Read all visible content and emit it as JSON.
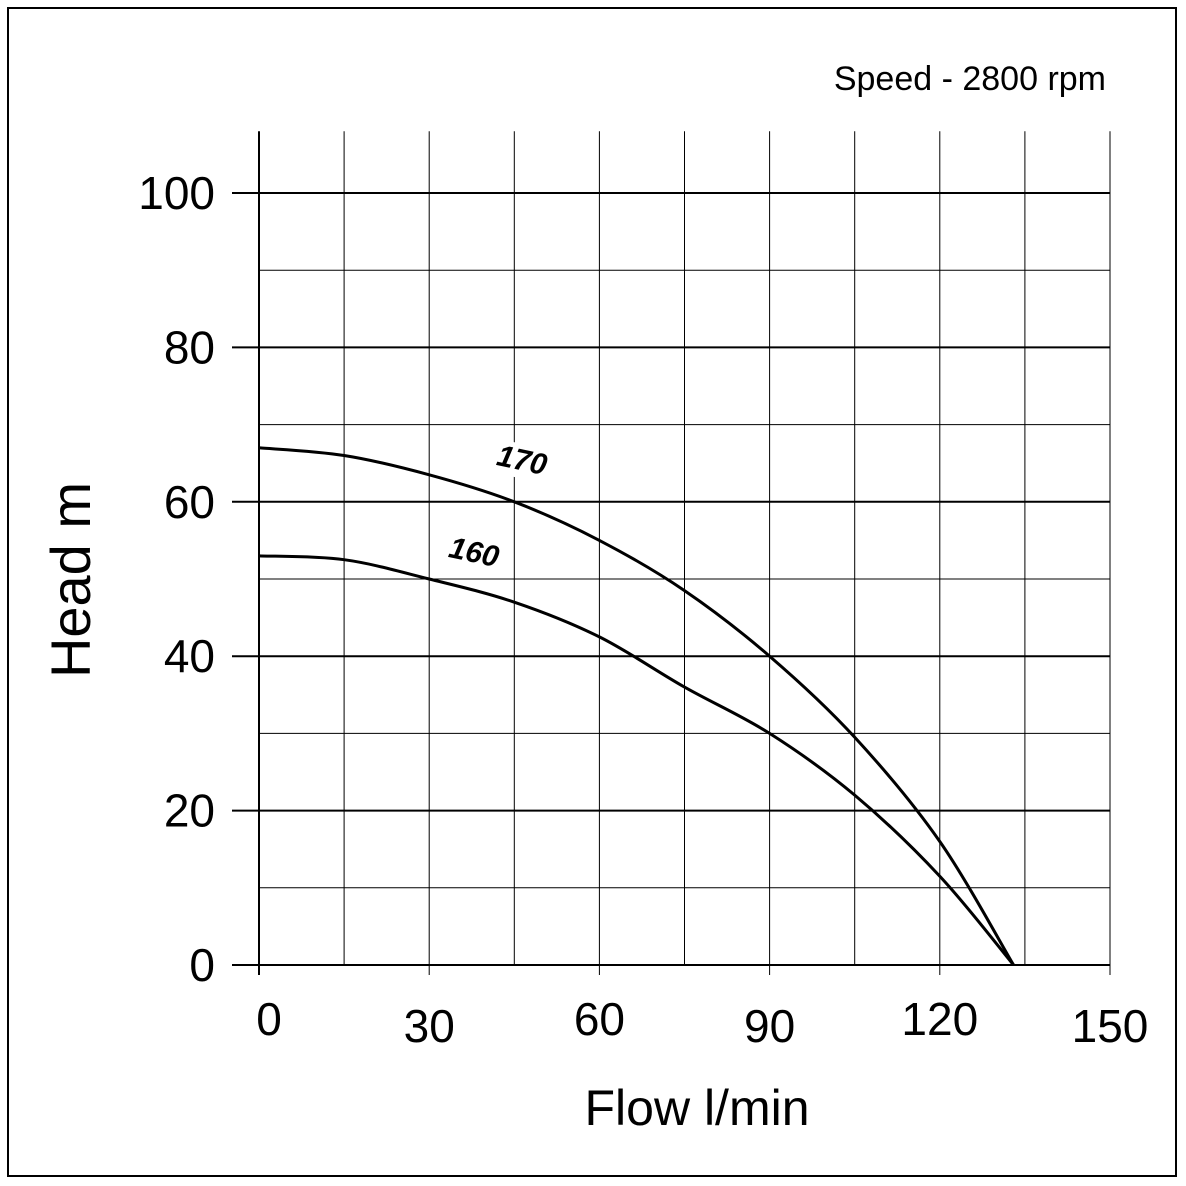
{
  "chart_data": {
    "type": "line",
    "annotation": "Speed - 2800 rpm",
    "xlabel": "Flow l/min",
    "ylabel": "Head m",
    "xlim": [
      0,
      150
    ],
    "ylim": [
      0,
      108
    ],
    "xticks": [
      0,
      30,
      60,
      90,
      120,
      150
    ],
    "yticks": [
      0,
      20,
      40,
      60,
      80,
      100
    ],
    "grid": true,
    "series": [
      {
        "name": "170",
        "x": [
          0,
          15,
          30,
          45,
          60,
          75,
          90,
          105,
          120,
          133
        ],
        "y": [
          67,
          66,
          63.5,
          60,
          55,
          48.5,
          40,
          29.5,
          16,
          0
        ]
      },
      {
        "name": "160",
        "x": [
          0,
          15,
          30,
          45,
          60,
          75,
          90,
          105,
          120,
          133
        ],
        "y": [
          53,
          52.5,
          50,
          47,
          42.5,
          36,
          30,
          22,
          11.5,
          0
        ]
      }
    ]
  }
}
